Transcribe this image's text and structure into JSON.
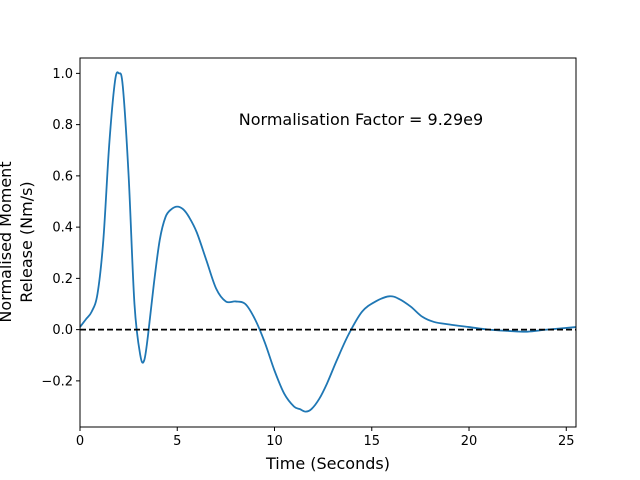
{
  "chart_data": {
    "type": "line",
    "title": "",
    "xlabel": "Time (Seconds)",
    "ylabel_lines": [
      "Normalised Moment",
      "Release (Nm/s)"
    ],
    "annotation": "Normalisation Factor = 9.29e9",
    "xlim": [
      0,
      25.5
    ],
    "ylim": [
      -0.38,
      1.06
    ],
    "xticks": [
      0,
      5,
      10,
      15,
      20,
      25
    ],
    "xtick_labels": [
      "0",
      "5",
      "10",
      "15",
      "20",
      "25"
    ],
    "yticks": [
      -0.2,
      0.0,
      0.2,
      0.4,
      0.6,
      0.8,
      1.0
    ],
    "ytick_labels": [
      "−0.2",
      "0.0",
      "0.2",
      "0.4",
      "0.6",
      "0.8",
      "1.0"
    ],
    "grid": false,
    "zero_line": {
      "y": 0,
      "style": "dashed",
      "color": "#000000"
    },
    "series": [
      {
        "color": "#1f77b4",
        "x": [
          0,
          0.3,
          0.6,
          0.9,
          1.2,
          1.5,
          1.8,
          2.0,
          2.2,
          2.5,
          2.8,
          3.1,
          3.3,
          3.5,
          3.8,
          4.1,
          4.4,
          4.7,
          5.0,
          5.3,
          5.6,
          6.0,
          6.5,
          7.0,
          7.5,
          8.0,
          8.5,
          9.0,
          9.5,
          10.0,
          10.5,
          11.0,
          11.3,
          11.6,
          11.9,
          12.3,
          12.7,
          13.2,
          13.8,
          14.5,
          15.2,
          15.9,
          16.4,
          17.0,
          17.6,
          18.2,
          19.0,
          20.0,
          21.0,
          22.0,
          23.0,
          24.0,
          25.5
        ],
        "y": [
          0.01,
          0.04,
          0.07,
          0.14,
          0.35,
          0.72,
          0.97,
          1.0,
          0.95,
          0.6,
          0.1,
          -0.1,
          -0.12,
          -0.02,
          0.18,
          0.35,
          0.44,
          0.47,
          0.48,
          0.47,
          0.44,
          0.38,
          0.27,
          0.16,
          0.11,
          0.11,
          0.1,
          0.04,
          -0.05,
          -0.16,
          -0.25,
          -0.3,
          -0.31,
          -0.32,
          -0.31,
          -0.27,
          -0.21,
          -0.12,
          -0.02,
          0.07,
          0.11,
          0.13,
          0.12,
          0.09,
          0.05,
          0.03,
          0.02,
          0.01,
          0.0,
          -0.005,
          -0.008,
          0.0,
          0.01
        ]
      }
    ]
  }
}
